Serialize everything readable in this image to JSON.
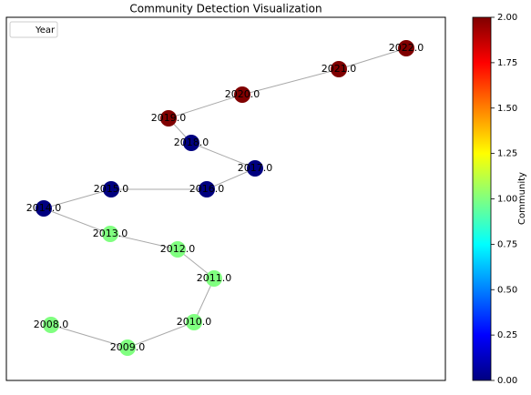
{
  "chart_data": {
    "type": "network",
    "title": "Community Detection Visualization",
    "legend_label": "Year",
    "legend_position": "upper left",
    "colorbar_label": "Community",
    "colormap": "jet",
    "clim": [
      0,
      2
    ],
    "cticks": [
      {
        "value": 0,
        "label": "0.00"
      },
      {
        "value": 0.25,
        "label": "0.25"
      },
      {
        "value": 0.5,
        "label": "0.50"
      },
      {
        "value": 0.75,
        "label": "0.75"
      },
      {
        "value": 1,
        "label": "1.00"
      },
      {
        "value": 1.25,
        "label": "1.25"
      },
      {
        "value": 1.5,
        "label": "1.50"
      },
      {
        "value": 1.75,
        "label": "1.75"
      },
      {
        "value": 2,
        "label": "2.00"
      }
    ],
    "nodes": [
      {
        "label": "2008.0",
        "community": 1
      },
      {
        "label": "2009.0",
        "community": 1
      },
      {
        "label": "2010.0",
        "community": 1
      },
      {
        "label": "2011.0",
        "community": 1
      },
      {
        "label": "2012.0",
        "community": 1
      },
      {
        "label": "2013.0",
        "community": 1
      },
      {
        "label": "2014.0",
        "community": 0
      },
      {
        "label": "2015.0",
        "community": 0
      },
      {
        "label": "2016.0",
        "community": 0
      },
      {
        "label": "2017.0",
        "community": 0
      },
      {
        "label": "2018.0",
        "community": 0
      },
      {
        "label": "2019.0",
        "community": 2
      },
      {
        "label": "2020.0",
        "community": 2
      },
      {
        "label": "2021.0",
        "community": 2
      },
      {
        "label": "2022.0",
        "community": 2
      }
    ],
    "edges": [
      [
        0,
        1
      ],
      [
        1,
        2
      ],
      [
        2,
        3
      ],
      [
        3,
        4
      ],
      [
        4,
        5
      ],
      [
        5,
        6
      ],
      [
        6,
        7
      ],
      [
        7,
        8
      ],
      [
        8,
        9
      ],
      [
        9,
        10
      ],
      [
        10,
        11
      ],
      [
        11,
        12
      ],
      [
        12,
        13
      ],
      [
        13,
        14
      ]
    ]
  }
}
